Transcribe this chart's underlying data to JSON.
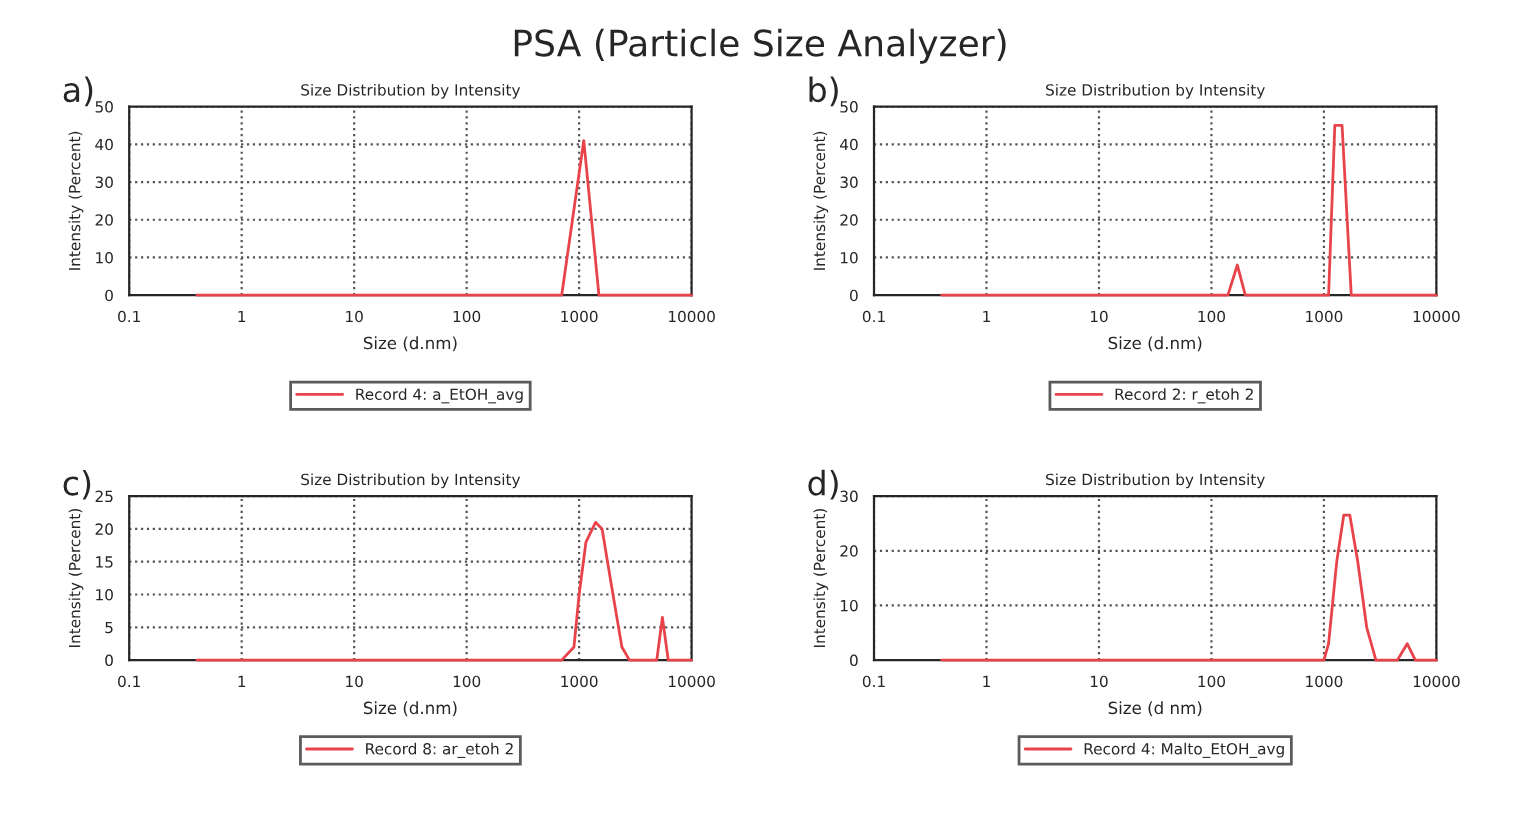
{
  "chart_data": [
    {
      "type": "line",
      "title": "PSA (Particle Size Analyzer)",
      "subtitle": "Size Distribution by Intensity",
      "xlabel": "Size (d.nm)",
      "ylabel": "Intensity (Percent)",
      "annotations": [
        "a)"
      ],
      "log": "x",
      "xlim": [
        0.1,
        10000
      ],
      "xticks": [
        0.1,
        1,
        10,
        100,
        1000,
        10000
      ],
      "ylim": [
        0,
        50
      ],
      "yticks": [
        0,
        10,
        20,
        30,
        40,
        50
      ],
      "grid": true,
      "legend": "bottom",
      "series": [
        {
          "name": "Record 4: a_EtOH_avg",
          "color": "#e8434a",
          "x": [
            0.4,
            1,
            10,
            100,
            700,
            1100,
            1500,
            10000
          ],
          "values": [
            0,
            0,
            0,
            0,
            0,
            41,
            0,
            0
          ]
        }
      ]
    },
    {
      "type": "line",
      "subtitle": "Size Distribution by Intensity",
      "xlabel": "Size (d.nm)",
      "ylabel": "Intensity (Percent)",
      "annotations": [
        "b)"
      ],
      "log": "x",
      "xlim": [
        0.1,
        10000
      ],
      "xticks": [
        0.1,
        1,
        10,
        100,
        1000,
        10000
      ],
      "ylim": [
        0,
        50
      ],
      "yticks": [
        0,
        10,
        20,
        30,
        40,
        50
      ],
      "grid": true,
      "legend": "bottom",
      "series": [
        {
          "name": "Record 2: r_etoh 2",
          "color": "#e8434a",
          "x": [
            0.4,
            1,
            10,
            100,
            140,
            170,
            200,
            1100,
            1250,
            1450,
            1750,
            10000
          ],
          "values": [
            0,
            0,
            0,
            0,
            0,
            8,
            0,
            0,
            45,
            45,
            0,
            0
          ]
        }
      ]
    },
    {
      "type": "line",
      "subtitle": "Size Distribution by Intensity",
      "xlabel": "Size (d.nm)",
      "ylabel": "Intensity (Percent)",
      "annotations": [
        "c)"
      ],
      "log": "x",
      "xlim": [
        0.1,
        10000
      ],
      "xticks": [
        0.1,
        1,
        10,
        100,
        1000,
        10000
      ],
      "ylim": [
        0,
        25
      ],
      "yticks": [
        0,
        5,
        10,
        15,
        20,
        25
      ],
      "grid": true,
      "legend": "bottom",
      "series": [
        {
          "name": "Record 8: ar_etoh 2",
          "color": "#e8434a",
          "x": [
            0.4,
            1,
            10,
            100,
            700,
            900,
            1000,
            1150,
            1400,
            1600,
            2000,
            2400,
            2800,
            4900,
            5500,
            6200,
            10000
          ],
          "values": [
            0,
            0,
            0,
            0,
            0,
            2,
            10,
            18,
            21,
            20,
            10,
            2,
            0,
            0,
            6.5,
            0,
            0
          ]
        }
      ]
    },
    {
      "type": "line",
      "subtitle": "Size Distribution by Intensity",
      "xlabel": "Size (d nm)",
      "ylabel": "Intensity (Percent)",
      "annotations": [
        "d)"
      ],
      "log": "x",
      "xlim": [
        0.1,
        10000
      ],
      "xticks": [
        0.1,
        1,
        10,
        100,
        1000,
        10000
      ],
      "ylim": [
        0,
        30
      ],
      "yticks": [
        0,
        10,
        20,
        30
      ],
      "grid": true,
      "legend": "bottom",
      "series": [
        {
          "name": "Record 4: Malto_EtOH_avg",
          "color": "#e8434a",
          "x": [
            0.4,
            1,
            10,
            100,
            1000,
            1100,
            1300,
            1500,
            1700,
            2000,
            2400,
            2900,
            4500,
            5500,
            6500,
            10000
          ],
          "values": [
            0,
            0,
            0,
            0,
            0,
            3,
            18,
            26.5,
            26.5,
            18,
            6,
            0,
            0,
            3,
            0,
            0
          ]
        }
      ]
    }
  ]
}
